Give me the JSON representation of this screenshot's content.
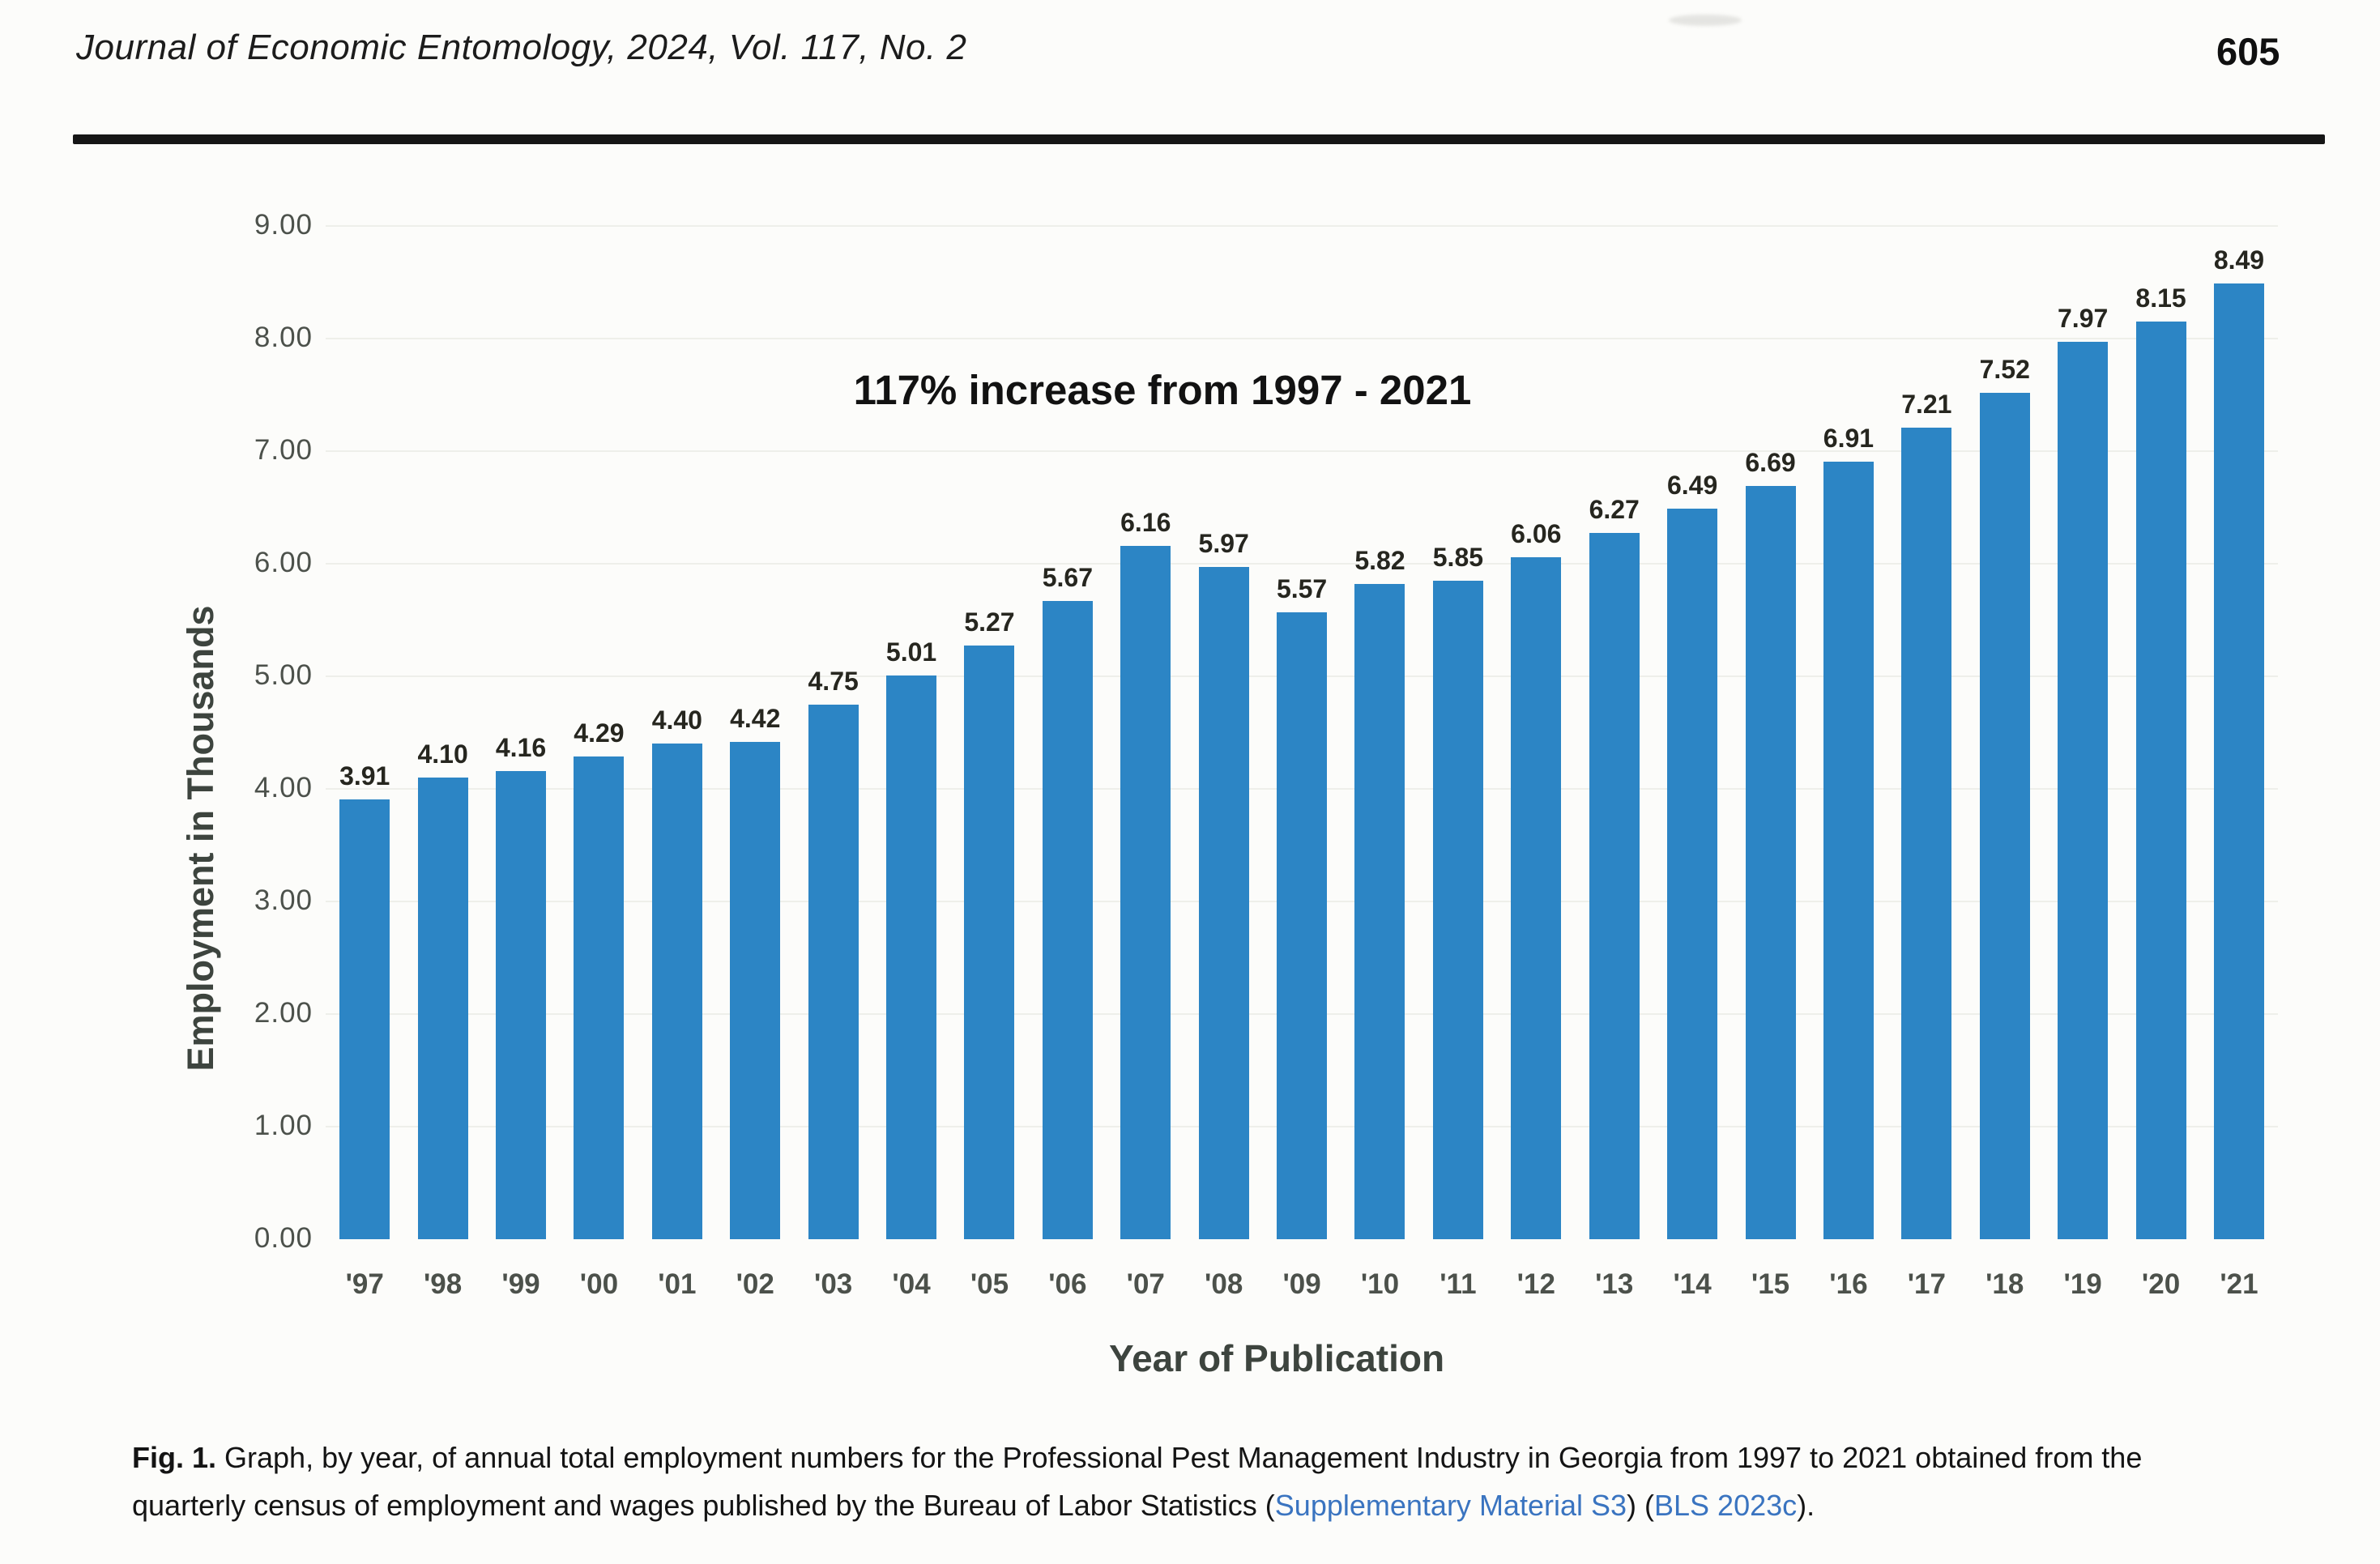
{
  "page": {
    "header": {
      "journal_line": "Journal of Economic Entomology, 2024, Vol. 117, No. 2",
      "page_number": "605"
    },
    "caption": {
      "lines": [
        {
          "segments": [
            {
              "text": "Fig. 1.",
              "bold": true
            },
            {
              "text": " Graph, by year, of annual total employment numbers for the Professional Pest Management Industry in Georgia from 1997 to 2021 obtained from the"
            }
          ]
        },
        {
          "segments": [
            {
              "text": "quarterly census of employment and wages published by the Bureau of Labor Statistics ("
            },
            {
              "text": "Supplementary Material S3",
              "link": true,
              "name": "supplementary-material-link"
            },
            {
              "text": ") ("
            },
            {
              "text": "BLS 2023c",
              "link": true,
              "name": "bls-citation-link"
            },
            {
              "text": ")."
            }
          ]
        }
      ]
    },
    "colors": {
      "link": "#3a74c0",
      "rule": "#161616"
    }
  },
  "chart_data": {
    "type": "bar",
    "title": "117% increase from 1997 - 2021",
    "xlabel": "Year of Publication",
    "ylabel": "Employment in Thousands",
    "categories": [
      "'97",
      "'98",
      "'99",
      "'00",
      "'01",
      "'02",
      "'03",
      "'04",
      "'05",
      "'06",
      "'07",
      "'08",
      "'09",
      "'10",
      "'11",
      "'12",
      "'13",
      "'14",
      "'15",
      "'16",
      "'17",
      "'18",
      "'19",
      "'20",
      "'21"
    ],
    "values": [
      3.91,
      4.1,
      4.16,
      4.29,
      4.4,
      4.42,
      4.75,
      5.01,
      5.27,
      5.67,
      6.16,
      5.97,
      5.57,
      5.82,
      5.85,
      6.06,
      6.27,
      6.49,
      6.69,
      6.91,
      7.21,
      7.52,
      7.97,
      8.15,
      8.49
    ],
    "value_label_decimals": 2,
    "ylim": [
      0,
      9
    ],
    "ytick_step": 1,
    "ytick_format": "0.00",
    "grid": "faint-horizontal",
    "legend": "none",
    "bar_color": "#2c85c5",
    "axis_text_color": "#4c514b"
  }
}
